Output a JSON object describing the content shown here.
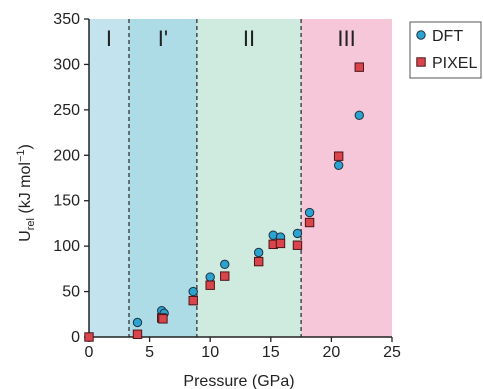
{
  "chart_data": {
    "type": "scatter",
    "xlabel": "Pressure (GPa)",
    "ylabel_main": "U",
    "ylabel_sub": "rel",
    "ylabel_unit": " (kJ mol",
    "ylabel_sup": "−1",
    "ylabel_close": ")",
    "xlim": [
      0,
      25
    ],
    "ylim": [
      0,
      350
    ],
    "xticks": [
      0,
      5,
      10,
      15,
      20,
      25
    ],
    "yticks": [
      0,
      50,
      100,
      150,
      200,
      250,
      300,
      350
    ],
    "regions": [
      {
        "label": "I",
        "x_start": 0,
        "x_end": 3.3,
        "color": "#c3e3ef"
      },
      {
        "label": "I'",
        "x_start": 3.3,
        "x_end": 8.9,
        "color": "#aedce6"
      },
      {
        "label": "II",
        "x_start": 8.9,
        "x_end": 17.5,
        "color": "#cfeadf"
      },
      {
        "label": "III",
        "x_start": 17.5,
        "x_end": 25,
        "color": "#f6c6d9"
      }
    ],
    "boundaries": [
      3.3,
      8.9,
      17.5
    ],
    "series": [
      {
        "name": "DFT",
        "marker": "circle",
        "color": "#2aa3d0",
        "points": [
          [
            0,
            0
          ],
          [
            4.0,
            16
          ],
          [
            6.0,
            29
          ],
          [
            6.2,
            26
          ],
          [
            8.6,
            50
          ],
          [
            10.0,
            66
          ],
          [
            11.2,
            80
          ],
          [
            14.0,
            93
          ],
          [
            15.2,
            112
          ],
          [
            15.8,
            110
          ],
          [
            17.2,
            114
          ],
          [
            18.2,
            137
          ],
          [
            20.6,
            189
          ],
          [
            22.3,
            244
          ]
        ]
      },
      {
        "name": "PIXEL",
        "marker": "square",
        "color": "#d9454b",
        "points": [
          [
            0,
            0
          ],
          [
            4.0,
            3
          ],
          [
            6.0,
            21
          ],
          [
            6.1,
            20
          ],
          [
            8.6,
            40
          ],
          [
            10.0,
            57
          ],
          [
            11.2,
            67
          ],
          [
            14.0,
            83
          ],
          [
            15.2,
            102
          ],
          [
            15.8,
            103
          ],
          [
            17.2,
            101
          ],
          [
            18.2,
            126
          ],
          [
            20.6,
            199
          ],
          [
            22.3,
            297
          ]
        ]
      }
    ],
    "legend_position": "top-right"
  }
}
